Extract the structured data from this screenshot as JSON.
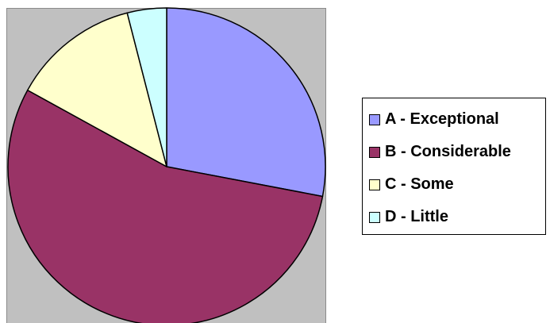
{
  "chart_data": {
    "type": "pie",
    "categories": [
      "A - Exceptional",
      "B - Considerable",
      "C - Some",
      "D - Little"
    ],
    "values": [
      28,
      55,
      13,
      4
    ],
    "colors": [
      "#9999ff",
      "#993366",
      "#ffffcc",
      "#ccffff"
    ],
    "plot_background": "#c0c0c0",
    "slice_border_color": "#000000",
    "start_angle": "12 o'clock",
    "direction": "clockwise",
    "legend_position": "right"
  }
}
